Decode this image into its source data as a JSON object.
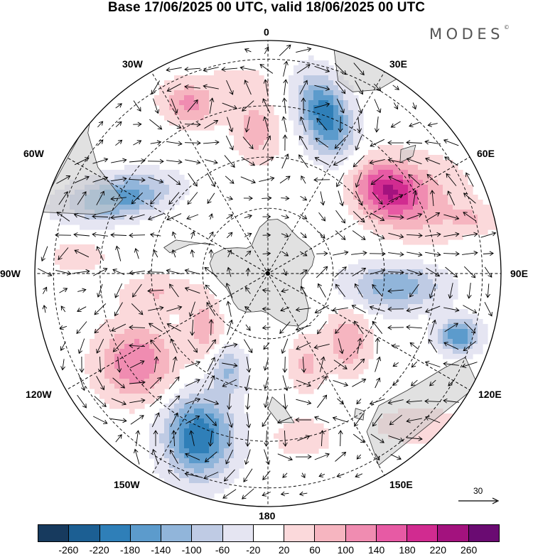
{
  "title": "Base 17/06/2025 00 UTC, valid 18/06/2025 00 UTC",
  "brand": "MODES",
  "brand_mark": "©",
  "longitude_labels": {
    "lon_0": "0",
    "lon_30e": "30E",
    "lon_60e": "60E",
    "lon_90e": "90E",
    "lon_120e": "120E",
    "lon_150e": "150E",
    "lon_180": "180",
    "lon_150w": "150W",
    "lon_120w": "120W",
    "lon_90w": "90W",
    "lon_60w": "60W",
    "lon_30w": "30W"
  },
  "reference_vector": {
    "value": "30"
  },
  "colorbar": {
    "colors": [
      "#173a5e",
      "#1c5f93",
      "#2f7fb8",
      "#5c9bcc",
      "#91b5da",
      "#bfcbe4",
      "#e5e5f2",
      "#ffffff",
      "#fbd9db",
      "#f6b5c0",
      "#f08cb1",
      "#e75aa4",
      "#d12b90",
      "#a3127e",
      "#6a0b72"
    ],
    "tick_labels": [
      "-260",
      "-220",
      "-180",
      "-140",
      "-100",
      "-60",
      "-20",
      "20",
      "60",
      "100",
      "140",
      "180",
      "220",
      "260"
    ]
  },
  "map": {
    "projection": "south-polar-stereographic",
    "blobs": [
      {
        "lon": 20,
        "r": 0.72,
        "sx": 0.12,
        "sy": 0.07,
        "rot": 70,
        "v": -210
      },
      {
        "lon": -5,
        "r": 0.62,
        "sx": 0.09,
        "sy": 0.06,
        "rot": 80,
        "v": 90
      },
      {
        "lon": -25,
        "r": 0.8,
        "sx": 0.08,
        "sy": 0.06,
        "rot": 20,
        "v": 110
      },
      {
        "lon": -10,
        "r": 0.82,
        "sx": 0.1,
        "sy": 0.05,
        "rot": 0,
        "v": 50
      },
      {
        "lon": 55,
        "r": 0.62,
        "sx": 0.1,
        "sy": 0.08,
        "rot": 30,
        "v": 200
      },
      {
        "lon": 65,
        "r": 0.75,
        "sx": 0.13,
        "sy": 0.12,
        "rot": 40,
        "v": 70
      },
      {
        "lon": -63,
        "r": 0.72,
        "sx": 0.15,
        "sy": 0.06,
        "rot": -10,
        "v": -170
      },
      {
        "lon": 96,
        "r": 0.55,
        "sx": 0.14,
        "sy": 0.07,
        "rot": 0,
        "v": -130
      },
      {
        "lon": 108,
        "r": 0.86,
        "sx": 0.06,
        "sy": 0.05,
        "rot": 0,
        "v": -180
      },
      {
        "lon": 130,
        "r": 0.45,
        "sx": 0.06,
        "sy": 0.09,
        "rot": 0,
        "v": 100
      },
      {
        "lon": 157,
        "r": 0.42,
        "sx": 0.05,
        "sy": 0.08,
        "rot": 0,
        "v": 70
      },
      {
        "lon": 168,
        "r": 0.72,
        "sx": 0.08,
        "sy": 0.05,
        "rot": 0,
        "v": 60
      },
      {
        "lon": -157,
        "r": 0.76,
        "sx": 0.1,
        "sy": 0.12,
        "rot": 0,
        "v": -220
      },
      {
        "lon": -158,
        "r": 0.45,
        "sx": 0.05,
        "sy": 0.07,
        "rot": 0,
        "v": -100
      },
      {
        "lon": -124,
        "r": 0.68,
        "sx": 0.11,
        "sy": 0.11,
        "rot": 0,
        "v": 140
      },
      {
        "lon": -130,
        "r": 0.36,
        "sx": 0.05,
        "sy": 0.09,
        "rot": 0,
        "v": 80
      },
      {
        "lon": -100,
        "r": 0.48,
        "sx": 0.1,
        "sy": 0.05,
        "rot": 0,
        "v": 60
      },
      {
        "lon": -85,
        "r": 0.82,
        "sx": 0.09,
        "sy": 0.05,
        "rot": 0,
        "v": 40
      },
      {
        "lon": 75,
        "r": 0.92,
        "sx": 0.08,
        "sy": 0.04,
        "rot": 0,
        "v": 50
      },
      {
        "lon": 135,
        "r": 0.92,
        "sx": 0.12,
        "sy": 0.05,
        "rot": 0,
        "v": 60
      }
    ]
  }
}
